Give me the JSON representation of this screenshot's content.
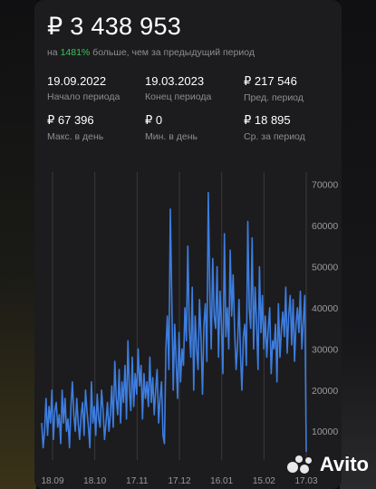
{
  "header": {
    "total": "₽ 3 438 953",
    "subtitle_prefix": "на ",
    "subtitle_pct": "1481%",
    "subtitle_suffix": " больше, чем за предыдущий период"
  },
  "stats": [
    {
      "value": "19.09.2022",
      "label": "Начало периода"
    },
    {
      "value": "19.03.2023",
      "label": "Конец периода"
    },
    {
      "value": "₽  217 546",
      "label": "Пред. период"
    },
    {
      "value": "₽ 67 396",
      "label": "Макс. в день"
    },
    {
      "value": "₽ 0",
      "label": "Мин. в день"
    },
    {
      "value": "₽ 18 895",
      "label": "Ср. за период"
    }
  ],
  "watermark": {
    "text": "Avito"
  },
  "colors": {
    "line": "#3d7ddf",
    "card": "#1c1c1e",
    "accent_green": "#34c759"
  },
  "chart_data": {
    "type": "line",
    "x_tick_labels": [
      "18.09",
      "18.10",
      "17.11",
      "17.12",
      "16.01",
      "15.02",
      "17.03"
    ],
    "y_tick_labels": [
      "10000",
      "20000",
      "30000",
      "40000",
      "50000",
      "60000",
      "70000"
    ],
    "y_axis_side": "right",
    "ylim": [
      3000,
      73000
    ],
    "grid": "vertical",
    "series": [
      {
        "values": [
          12000,
          6000,
          10000,
          18000,
          9000,
          16000,
          12000,
          20000,
          8000,
          15000,
          17000,
          11000,
          14000,
          7000,
          20000,
          12000,
          18000,
          10000,
          13000,
          6000,
          16000,
          22000,
          14000,
          10000,
          18000,
          12000,
          8000,
          14000,
          17000,
          9000,
          20000,
          15000,
          11000,
          6000,
          22000,
          12000,
          16000,
          9000,
          19000,
          13000,
          11000,
          20000,
          15000,
          8000,
          12000,
          17000,
          10000,
          14000,
          21000,
          11000,
          27000,
          18000,
          14000,
          25000,
          12000,
          22000,
          17000,
          26000,
          13000,
          32000,
          20000,
          15000,
          28000,
          16000,
          24000,
          19000,
          30000,
          21000,
          26000,
          13000,
          24000,
          18000,
          22000,
          16000,
          28000,
          17000,
          23000,
          14000,
          20000,
          25000,
          12000,
          18000,
          22000,
          9000,
          7000,
          30000,
          38000,
          25000,
          64000,
          42000,
          20000,
          36000,
          27000,
          18000,
          34000,
          22000,
          30000,
          26000,
          40000,
          32000,
          55000,
          35000,
          28000,
          45000,
          20000,
          38000,
          30000,
          25000,
          42000,
          33000,
          19000,
          36000,
          41000,
          27000,
          68000,
          45000,
          30000,
          52000,
          38000,
          35000,
          50000,
          28000,
          44000,
          36000,
          24000,
          58000,
          33000,
          40000,
          30000,
          54000,
          38000,
          48000,
          34000,
          25000,
          31000,
          42000,
          29000,
          20000,
          33000,
          36000,
          26000,
          61000,
          40000,
          35000,
          57000,
          30000,
          45000,
          37000,
          25000,
          50000,
          34000,
          43000,
          30000,
          38000,
          28000,
          35000,
          40000,
          24000,
          32000,
          30000,
          36000,
          22000,
          41000,
          28000,
          35000,
          39000,
          33000,
          45000,
          29000,
          38000,
          43000,
          31000,
          42000,
          27000,
          36000,
          40000,
          34000,
          44000,
          30000,
          37000,
          43000,
          5000
        ]
      }
    ]
  }
}
